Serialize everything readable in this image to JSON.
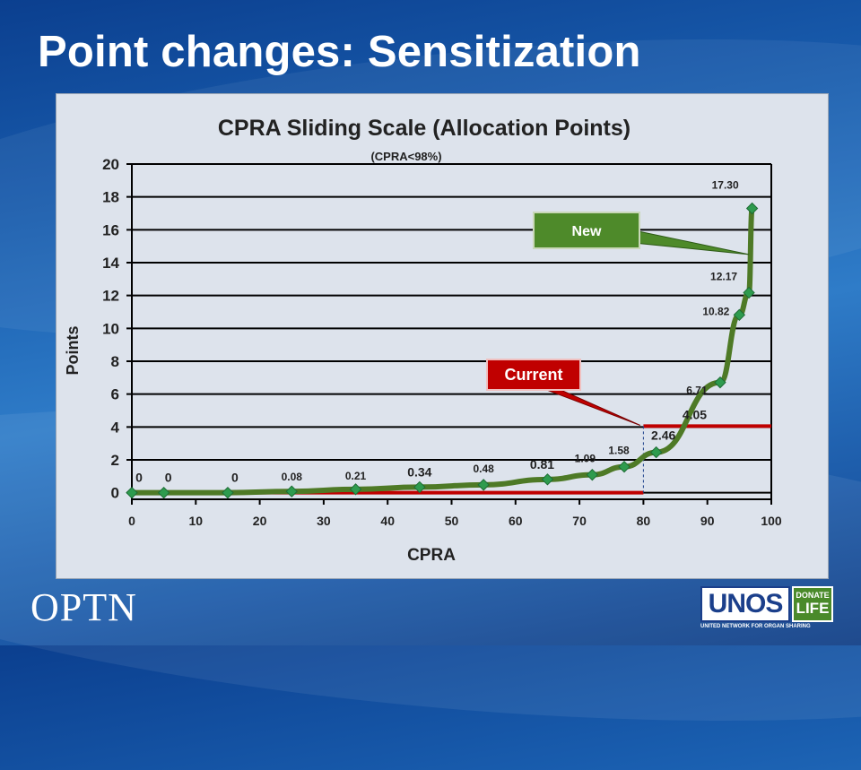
{
  "slide": {
    "title": "Point changes: Sensitization"
  },
  "footer": {
    "optn": "OPTN",
    "unos": "UNOS",
    "donate_top": "DONATE",
    "donate_bottom": "LIFE",
    "unos_tagline": "UNITED NETWORK FOR ORGAN SHARING"
  },
  "chart_data": {
    "type": "line",
    "title": "CPRA Sliding Scale (Allocation Points)",
    "subtitle": "(CPRA<98%)",
    "xlabel": "CPRA",
    "ylabel": "Points",
    "xlim": [
      0,
      100
    ],
    "ylim": [
      0,
      20
    ],
    "xticks": [
      0,
      10,
      20,
      30,
      40,
      50,
      60,
      70,
      80,
      90,
      100
    ],
    "yticks": [
      0,
      2,
      4,
      6,
      8,
      10,
      12,
      14,
      16,
      18,
      20
    ],
    "grid": "horizontal",
    "colors": {
      "line": "#4e7a26",
      "marker": "#2e9b4e",
      "current": "#c00000",
      "new_box": "#4e8a2a",
      "gridline": "#000000"
    },
    "series": [
      {
        "x": [
          0,
          5,
          15,
          25,
          35,
          45,
          55,
          65,
          72,
          77,
          82,
          92,
          95,
          96.5,
          97
        ],
        "y": [
          0,
          0,
          0,
          0.08,
          0.21,
          0.34,
          0.48,
          0.81,
          1.09,
          1.58,
          2.46,
          6.71,
          10.82,
          12.17,
          17.3
        ]
      }
    ],
    "data_labels": [
      {
        "text": "0",
        "x": 0,
        "y": 0
      },
      {
        "text": "0",
        "x": 5,
        "y": 0
      },
      {
        "text": "0",
        "x": 15,
        "y": 0
      },
      {
        "text": "0.08",
        "x": 25,
        "y": 0.08
      },
      {
        "text": "0.21",
        "x": 35,
        "y": 0.21
      },
      {
        "text": "0.34",
        "x": 45,
        "y": 0.34
      },
      {
        "text": "0.48",
        "x": 55,
        "y": 0.48
      },
      {
        "text": "0.81",
        "x": 65,
        "y": 0.81
      },
      {
        "text": "1.09",
        "x": 72,
        "y": 1.09
      },
      {
        "text": "1.58",
        "x": 77,
        "y": 1.58
      },
      {
        "text": "2.46",
        "x": 82,
        "y": 2.46
      },
      {
        "text": "4.05",
        "x": 88,
        "y": 4.05
      },
      {
        "text": "6.71",
        "x": 92,
        "y": 6.71
      },
      {
        "text": "10.82",
        "x": 95,
        "y": 10.82
      },
      {
        "text": "12.17",
        "x": 96.5,
        "y": 12.17
      },
      {
        "text": "17.30",
        "x": 97,
        "y": 17.3
      }
    ],
    "current_scale": {
      "segments": [
        {
          "x": [
            0,
            80
          ],
          "y": [
            0,
            0
          ]
        },
        {
          "x": [
            80,
            100
          ],
          "y": [
            4.05,
            4.05
          ]
        }
      ],
      "step_x": 80
    },
    "annotations": {
      "new_label": "New",
      "current_label": "Current"
    }
  }
}
